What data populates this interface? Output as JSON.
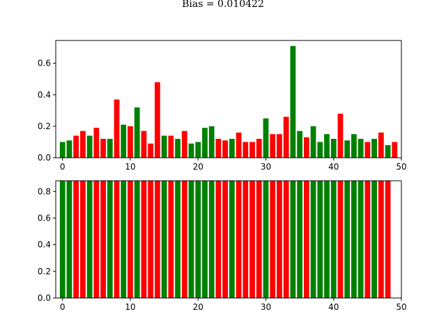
{
  "figure_title": "Bias = 0.010422",
  "colors": {
    "positive": "#008000",
    "negative": "#ff0000",
    "frame": "#000000"
  },
  "chart_data": [
    {
      "type": "bar",
      "x": [
        0,
        1,
        2,
        3,
        4,
        5,
        6,
        7,
        8,
        9,
        10,
        11,
        12,
        13,
        14,
        15,
        16,
        17,
        18,
        19,
        20,
        21,
        22,
        23,
        24,
        25,
        26,
        27,
        28,
        29,
        30,
        31,
        32,
        33,
        34,
        35,
        36,
        37,
        38,
        39,
        40,
        41,
        42,
        43,
        44,
        45,
        46,
        47,
        48,
        49
      ],
      "values": [
        0.1,
        0.11,
        0.14,
        0.17,
        0.14,
        0.19,
        0.12,
        0.12,
        0.37,
        0.21,
        0.2,
        0.32,
        0.17,
        0.09,
        0.48,
        0.14,
        0.14,
        0.12,
        0.17,
        0.09,
        0.1,
        0.19,
        0.2,
        0.12,
        0.11,
        0.12,
        0.16,
        0.1,
        0.1,
        0.12,
        0.25,
        0.15,
        0.15,
        0.26,
        0.71,
        0.17,
        0.13,
        0.2,
        0.1,
        0.15,
        0.12,
        0.28,
        0.11,
        0.15,
        0.12,
        0.1,
        0.12,
        0.16,
        0.08,
        0.1
      ],
      "bar_colors": [
        "green",
        "green",
        "red",
        "red",
        "green",
        "red",
        "red",
        "green",
        "red",
        "green",
        "red",
        "green",
        "red",
        "red",
        "red",
        "green",
        "red",
        "green",
        "red",
        "green",
        "green",
        "green",
        "green",
        "red",
        "red",
        "green",
        "red",
        "red",
        "red",
        "red",
        "green",
        "red",
        "red",
        "red",
        "green",
        "green",
        "red",
        "green",
        "green",
        "green",
        "green",
        "red",
        "green",
        "green",
        "green",
        "red",
        "green",
        "red",
        "green",
        "red"
      ],
      "xlim": [
        -1,
        50
      ],
      "ylim": [
        0,
        0.745
      ],
      "xticks": [
        0,
        10,
        20,
        30,
        40,
        50
      ],
      "xtick_labels": [
        "0",
        "10",
        "20",
        "30",
        "40",
        "50"
      ],
      "yticks": [
        0.0,
        0.2,
        0.4,
        0.6
      ],
      "ytick_labels": [
        "0.0",
        "0.2",
        "0.4",
        "0.6"
      ]
    },
    {
      "type": "bar",
      "x": [
        0,
        1,
        2,
        3,
        4,
        5,
        6,
        7,
        8,
        9,
        10,
        11,
        12,
        13,
        14,
        15,
        16,
        17,
        18,
        19,
        20,
        21,
        22,
        23,
        24,
        25,
        26,
        27,
        28,
        29,
        30,
        31,
        32,
        33,
        34,
        35,
        36,
        37,
        38,
        39,
        40,
        41,
        42,
        43,
        44,
        45,
        46,
        47,
        48
      ],
      "values": [
        0.88,
        0.88,
        0.88,
        0.88,
        0.88,
        0.88,
        0.88,
        0.88,
        0.88,
        0.88,
        0.88,
        0.88,
        0.88,
        0.88,
        0.88,
        0.88,
        0.88,
        0.88,
        0.88,
        0.88,
        0.88,
        0.88,
        0.88,
        0.88,
        0.88,
        0.88,
        0.88,
        0.88,
        0.88,
        0.88,
        0.88,
        0.88,
        0.88,
        0.88,
        0.88,
        0.88,
        0.88,
        0.88,
        0.88,
        0.88,
        0.88,
        0.88,
        0.88,
        0.88,
        0.88,
        0.88,
        0.88,
        0.88,
        0.88
      ],
      "bar_colors": [
        "green",
        "green",
        "red",
        "red",
        "green",
        "red",
        "red",
        "green",
        "red",
        "green",
        "red",
        "green",
        "red",
        "red",
        "red",
        "green",
        "red",
        "green",
        "red",
        "green",
        "green",
        "green",
        "green",
        "red",
        "red",
        "green",
        "red",
        "red",
        "red",
        "red",
        "green",
        "red",
        "red",
        "red",
        "green",
        "green",
        "red",
        "green",
        "green",
        "green",
        "green",
        "red",
        "green",
        "green",
        "green",
        "red",
        "green",
        "red",
        "red"
      ],
      "xlim": [
        -1,
        50
      ],
      "ylim": [
        0,
        0.88
      ],
      "xticks": [
        0,
        10,
        20,
        30,
        40,
        50
      ],
      "xtick_labels": [
        "0",
        "10",
        "20",
        "30",
        "40",
        "50"
      ],
      "yticks": [
        0.0,
        0.2,
        0.4,
        0.6,
        0.8
      ],
      "ytick_labels": [
        "0.0",
        "0.2",
        "0.4",
        "0.6",
        "0.8"
      ]
    }
  ]
}
